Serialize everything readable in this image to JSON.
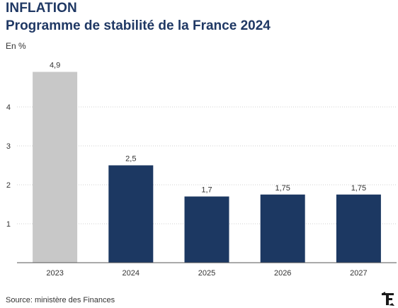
{
  "header": {
    "title": "INFLATION",
    "subtitle": "Programme de stabilité de la France 2024",
    "unit": "En %"
  },
  "footer": {
    "source": "Source: ministère des Finances",
    "logo": "F"
  },
  "colors": {
    "title": "#1f3864",
    "bar_highlight": "#c8c8c8",
    "bar_default": "#1c3862",
    "grid": "#d0d0d0",
    "text": "#333333"
  },
  "chart_data": {
    "type": "bar",
    "categories": [
      "2023",
      "2024",
      "2025",
      "2026",
      "2027"
    ],
    "values": [
      4.9,
      2.5,
      1.7,
      1.75,
      1.75
    ],
    "value_labels": [
      "4,9",
      "2,5",
      "1,7",
      "1,75",
      "1,75"
    ],
    "highlighted_category": "2023",
    "ylim": [
      0,
      5
    ],
    "yticks": [
      1,
      2,
      3,
      4
    ],
    "ylabel": "En %",
    "xlabel": "",
    "grid": true,
    "legend": "none"
  }
}
